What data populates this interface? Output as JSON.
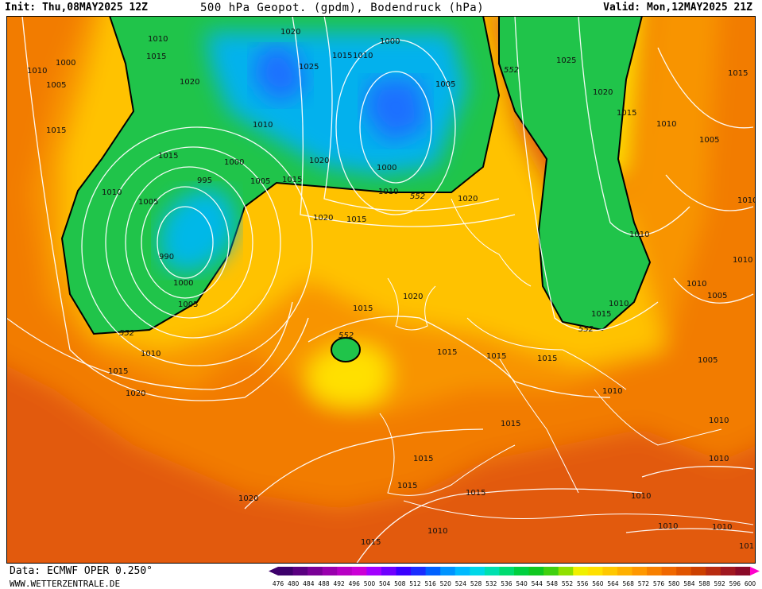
{
  "header": {
    "init": "Init: Thu,08MAY2025 12Z",
    "title": "500 hPa Geopot. (gpdm), Bodendruck (hPa)",
    "valid": "Valid: Mon,12MAY2025 21Z"
  },
  "footer": {
    "data_source": "Data: ECMWF OPER 0.250°",
    "website": "WWW.WETTERZENTRALE.DE"
  },
  "color_scale": {
    "values": [
      "476",
      "480",
      "484",
      "488",
      "492",
      "496",
      "500",
      "504",
      "508",
      "512",
      "516",
      "520",
      "524",
      "528",
      "532",
      "536",
      "540",
      "544",
      "548",
      "552",
      "556",
      "560",
      "564",
      "568",
      "572",
      "576",
      "580",
      "584",
      "588",
      "592",
      "596",
      "600"
    ],
    "colors": [
      "#3d006b",
      "#5a0080",
      "#7a0096",
      "#9a00ad",
      "#b800c4",
      "#cc00d6",
      "#a300ff",
      "#6f00ff",
      "#3a00ff",
      "#1a2cff",
      "#0060ff",
      "#0094ff",
      "#00baff",
      "#00d8e8",
      "#00e0b0",
      "#00dc70",
      "#00d040",
      "#10c820",
      "#40d010",
      "#90e000",
      "#f0f000",
      "#ffe000",
      "#ffc800",
      "#ffb000",
      "#ff9800",
      "#f88000",
      "#f06800",
      "#e05400",
      "#cc4000",
      "#b82c10",
      "#a01820",
      "#8a0a28"
    ]
  },
  "isobar_labels": [
    {
      "text": "1010"
    },
    {
      "text": "1000"
    },
    {
      "text": "1010"
    },
    {
      "text": "1005"
    },
    {
      "text": "1015"
    },
    {
      "text": "1015"
    },
    {
      "text": "1020"
    },
    {
      "text": "1020"
    },
    {
      "text": "1025"
    },
    {
      "text": "1015"
    },
    {
      "text": "1010"
    },
    {
      "text": "1000"
    },
    {
      "text": "1005"
    },
    {
      "text": "1025"
    },
    {
      "text": "1020"
    },
    {
      "text": "1015"
    },
    {
      "text": "1015"
    },
    {
      "text": "1010"
    },
    {
      "text": "1005"
    },
    {
      "text": "1010"
    },
    {
      "text": "1015"
    },
    {
      "text": "1000"
    },
    {
      "text": "1005"
    },
    {
      "text": "1020"
    },
    {
      "text": "1015"
    },
    {
      "text": "1000"
    },
    {
      "text": "1010"
    },
    {
      "text": "995"
    },
    {
      "text": "1005"
    },
    {
      "text": "1010"
    },
    {
      "text": "1020"
    },
    {
      "text": "1015"
    },
    {
      "text": "990"
    },
    {
      "text": "1000"
    },
    {
      "text": "1005"
    },
    {
      "text": "1010"
    },
    {
      "text": "1015"
    },
    {
      "text": "1020"
    },
    {
      "text": "1015"
    },
    {
      "text": "1020"
    },
    {
      "text": "1015"
    },
    {
      "text": "1020"
    },
    {
      "text": "1015"
    },
    {
      "text": "1010"
    },
    {
      "text": "1015"
    },
    {
      "text": "1010"
    },
    {
      "text": "1015"
    },
    {
      "text": "1015"
    },
    {
      "text": "1015"
    },
    {
      "text": "1020"
    },
    {
      "text": "1010"
    },
    {
      "text": "1010"
    },
    {
      "text": "1015"
    },
    {
      "text": "1010"
    },
    {
      "text": "1010"
    },
    {
      "text": "1005"
    },
    {
      "text": "1010"
    },
    {
      "text": "1005"
    },
    {
      "text": "1015"
    },
    {
      "text": "1010"
    },
    {
      "text": "1010"
    },
    {
      "text": "1010"
    },
    {
      "text": "1015"
    },
    {
      "text": "1010"
    },
    {
      "text": "1010"
    },
    {
      "text": "101"
    }
  ],
  "contour_552_labels": [
    {
      "text": "552"
    },
    {
      "text": "552"
    },
    {
      "text": "552"
    },
    {
      "text": "552"
    },
    {
      "text": "552"
    }
  ]
}
